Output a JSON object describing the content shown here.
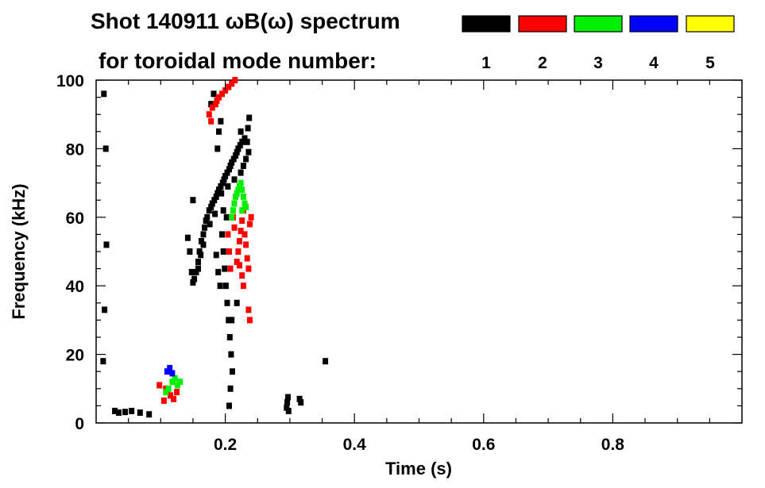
{
  "chart_data": {
    "type": "scatter",
    "title_line1": "Shot 140911 ωB(ω) spectrum",
    "title_line2": "for toroidal mode number:",
    "xlabel": "Time (s)",
    "ylabel": "Frequency (kHz)",
    "xlim": [
      0.0,
      1.0
    ],
    "ylim": [
      0,
      100
    ],
    "x_ticks": [
      0.2,
      0.4,
      0.6,
      0.8
    ],
    "x_tick_labels": [
      "0.2",
      "0.4",
      "0.6",
      "0.8"
    ],
    "y_ticks": [
      0,
      20,
      40,
      60,
      80,
      100
    ],
    "y_tick_labels": [
      "0",
      "20",
      "40",
      "60",
      "80",
      "100"
    ],
    "grid": false,
    "legend_position": "top-right",
    "legend": [
      {
        "label": "1",
        "color": "#000000"
      },
      {
        "label": "2",
        "color": "#ff0000"
      },
      {
        "label": "3",
        "color": "#00ee00"
      },
      {
        "label": "4",
        "color": "#0000ff"
      },
      {
        "label": "5",
        "color": "#ffff00"
      }
    ],
    "series": [
      {
        "mode": "1",
        "color": "#000000",
        "points": [
          [
            0.152,
            42
          ],
          [
            0.155,
            44
          ],
          [
            0.158,
            47
          ],
          [
            0.16,
            50
          ],
          [
            0.163,
            53
          ],
          [
            0.166,
            55
          ],
          [
            0.168,
            57
          ],
          [
            0.17,
            59
          ],
          [
            0.172,
            60
          ],
          [
            0.175,
            62
          ],
          [
            0.178,
            63
          ],
          [
            0.18,
            64
          ],
          [
            0.183,
            65
          ],
          [
            0.186,
            66
          ],
          [
            0.188,
            67
          ],
          [
            0.19,
            68
          ],
          [
            0.193,
            69
          ],
          [
            0.196,
            70
          ],
          [
            0.198,
            71
          ],
          [
            0.2,
            72
          ],
          [
            0.203,
            73
          ],
          [
            0.206,
            74
          ],
          [
            0.208,
            75
          ],
          [
            0.21,
            76
          ],
          [
            0.213,
            77
          ],
          [
            0.216,
            78
          ],
          [
            0.218,
            79
          ],
          [
            0.22,
            80
          ],
          [
            0.223,
            81
          ],
          [
            0.226,
            82
          ],
          [
            0.23,
            83
          ],
          [
            0.234,
            82
          ],
          [
            0.236,
            79
          ],
          [
            0.232,
            77
          ],
          [
            0.228,
            75
          ],
          [
            0.224,
            73
          ],
          [
            0.214,
            71
          ],
          [
            0.204,
            69
          ],
          [
            0.194,
            67
          ],
          [
            0.184,
            61
          ],
          [
            0.176,
            58
          ],
          [
            0.166,
            52
          ],
          [
            0.162,
            49
          ],
          [
            0.158,
            45
          ],
          [
            0.15,
            41
          ],
          [
            0.148,
            44
          ],
          [
            0.145,
            50
          ],
          [
            0.142,
            54
          ],
          [
            0.195,
            55
          ],
          [
            0.197,
            50
          ],
          [
            0.199,
            45
          ],
          [
            0.201,
            40
          ],
          [
            0.203,
            35
          ],
          [
            0.205,
            30
          ],
          [
            0.207,
            25
          ],
          [
            0.209,
            20
          ],
          [
            0.211,
            15
          ],
          [
            0.208,
            10
          ],
          [
            0.206,
            5
          ],
          [
            0.202,
            60
          ],
          [
            0.197,
            62
          ],
          [
            0.188,
            80
          ],
          [
            0.19,
            85
          ],
          [
            0.193,
            88
          ],
          [
            0.178,
            93
          ],
          [
            0.182,
            96
          ],
          [
            0.235,
            86
          ],
          [
            0.237,
            89
          ],
          [
            0.224,
            85
          ],
          [
            0.029,
            3.5
          ],
          [
            0.035,
            3
          ],
          [
            0.045,
            3.2
          ],
          [
            0.055,
            3.5
          ],
          [
            0.068,
            3
          ],
          [
            0.082,
            2.5
          ],
          [
            0.295,
            4.5
          ],
          [
            0.296,
            6
          ],
          [
            0.297,
            7.5
          ],
          [
            0.298,
            3.5
          ],
          [
            0.315,
            7
          ],
          [
            0.317,
            6
          ],
          [
            0.355,
            18
          ],
          [
            0.011,
            18
          ],
          [
            0.013,
            33
          ],
          [
            0.016,
            52
          ],
          [
            0.015,
            80
          ],
          [
            0.012,
            96
          ],
          [
            0.15,
            65
          ],
          [
            0.21,
            30
          ],
          [
            0.218,
            35
          ],
          [
            0.192,
            40
          ],
          [
            0.189,
            44
          ],
          [
            0.186,
            49
          ]
        ]
      },
      {
        "mode": "2",
        "color": "#ff0000",
        "points": [
          [
            0.175,
            90
          ],
          [
            0.18,
            92
          ],
          [
            0.185,
            93
          ],
          [
            0.19,
            95
          ],
          [
            0.195,
            96
          ],
          [
            0.2,
            97
          ],
          [
            0.205,
            98
          ],
          [
            0.21,
            99
          ],
          [
            0.215,
            100
          ],
          [
            0.178,
            88
          ],
          [
            0.187,
            94
          ],
          [
            0.218,
            47
          ],
          [
            0.22,
            50
          ],
          [
            0.222,
            53
          ],
          [
            0.224,
            56
          ],
          [
            0.226,
            59
          ],
          [
            0.228,
            62
          ],
          [
            0.23,
            55
          ],
          [
            0.232,
            52
          ],
          [
            0.234,
            48
          ],
          [
            0.236,
            45
          ],
          [
            0.222,
            46
          ],
          [
            0.226,
            43
          ],
          [
            0.238,
            58
          ],
          [
            0.24,
            60
          ],
          [
            0.228,
            40
          ],
          [
            0.236,
            33
          ],
          [
            0.238,
            30
          ],
          [
            0.204,
            55
          ],
          [
            0.206,
            50
          ],
          [
            0.208,
            45
          ],
          [
            0.11,
            9
          ],
          [
            0.115,
            8
          ],
          [
            0.12,
            7
          ],
          [
            0.108,
            10
          ],
          [
            0.098,
            11
          ],
          [
            0.105,
            6.5
          ],
          [
            0.125,
            9
          ],
          [
            0.212,
            60
          ],
          [
            0.214,
            57
          ]
        ]
      },
      {
        "mode": "3",
        "color": "#00ee00",
        "points": [
          [
            0.21,
            60
          ],
          [
            0.212,
            62
          ],
          [
            0.214,
            64
          ],
          [
            0.216,
            66
          ],
          [
            0.218,
            67
          ],
          [
            0.22,
            68
          ],
          [
            0.222,
            69
          ],
          [
            0.224,
            70
          ],
          [
            0.226,
            68
          ],
          [
            0.228,
            66
          ],
          [
            0.23,
            64
          ],
          [
            0.226,
            62
          ],
          [
            0.232,
            63
          ],
          [
            0.118,
            12
          ],
          [
            0.122,
            13
          ],
          [
            0.126,
            11
          ],
          [
            0.112,
            10
          ],
          [
            0.13,
            12
          ],
          [
            0.108,
            9
          ]
        ]
      },
      {
        "mode": "4",
        "color": "#0000ff",
        "points": [
          [
            0.11,
            15
          ],
          [
            0.114,
            16
          ],
          [
            0.118,
            14.5
          ]
        ]
      }
    ]
  }
}
